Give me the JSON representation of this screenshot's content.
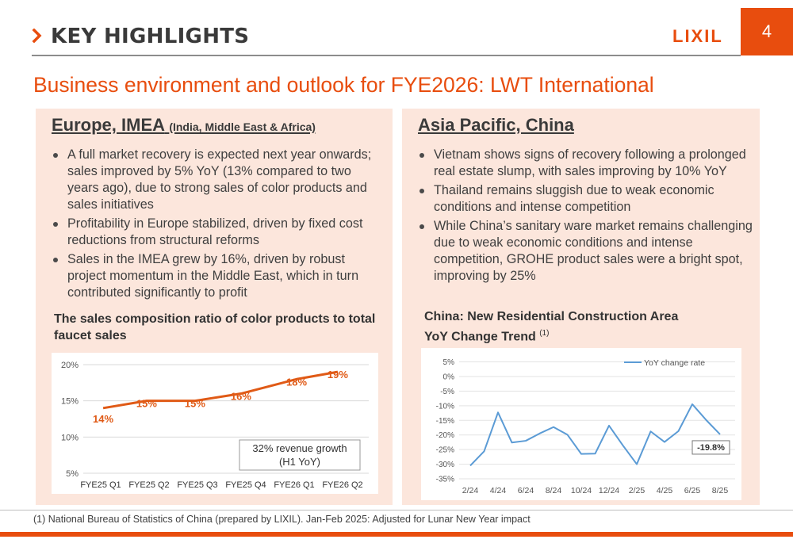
{
  "header": {
    "title": "KEY HIGHLIGHTS",
    "logo": "LIXIL",
    "page_number": "4"
  },
  "subtitle": "Business environment and outlook for FYE2026: LWT International",
  "left_panel": {
    "title": "Europe, IMEA",
    "title_sub": "(India, Middle East & Africa)",
    "bullets": [
      "A full market recovery is expected next year onwards; sales improved by 5% YoY (13% compared to two years ago), due to strong sales of color products and sales initiatives",
      "Profitability in Europe stabilized, driven by fixed cost reductions from structural reforms",
      "Sales in the IMEA grew by 16%, driven by robust project momentum in the Middle East, which in turn contributed significantly to profit"
    ],
    "chart_title": "The sales composition ratio of color products to total faucet sales",
    "annotation_line1": "32% revenue growth",
    "annotation_line2": "(H1 YoY)"
  },
  "right_panel": {
    "title": "Asia Pacific, China",
    "bullets": [
      "Vietnam shows signs of recovery following a prolonged real estate slump, with sales improving by 10% YoY",
      "Thailand remains sluggish due to weak economic conditions and intense competition",
      "While China’s sanitary ware market remains challenging due to weak economic conditions and intense competition, GROHE product sales were a bright spot, improving by 25%"
    ],
    "chart_title_line1": "China: New Residential Construction Area",
    "chart_title_line2": "YoY Change Trend",
    "chart_title_note": "(1)",
    "callout": "-19.8%"
  },
  "footnote": "(1) National Bureau of Statistics of China (prepared by LIXIL). Jan-Feb 2025: Adjusted for Lunar New Year impact",
  "colors": {
    "accent": "#e84d0e",
    "panel_bg": "#fce6dc",
    "line_blue": "#5b9bd5"
  },
  "chart_data": [
    {
      "type": "line",
      "title": "The sales composition ratio of color products to total faucet sales",
      "categories": [
        "FYE25 Q1",
        "FYE25 Q2",
        "FYE25 Q3",
        "FYE25 Q4",
        "FYE26 Q1",
        "FYE26 Q2"
      ],
      "values": [
        14,
        15,
        15,
        16,
        18,
        19
      ],
      "point_x": [
        0.05,
        0.95,
        1.95,
        2.9,
        4.05,
        4.9
      ],
      "data_labels": [
        "14%",
        "15%",
        "15%",
        "16%",
        "18%",
        "19%"
      ],
      "ylim": [
        5,
        20
      ],
      "yticks": [
        5,
        10,
        15,
        20
      ],
      "ytick_labels": [
        "5%",
        "10%",
        "15%",
        "20%"
      ],
      "grid": true,
      "color": "#e05a16"
    },
    {
      "type": "line",
      "title": "China: New Residential Construction Area YoY Change Trend",
      "legend": [
        "YoY change rate"
      ],
      "legend_position": "top-right",
      "x_tick_labels": [
        "2/24",
        "4/24",
        "6/24",
        "8/24",
        "10/24",
        "12/24",
        "2/25",
        "4/25",
        "6/25",
        "8/25"
      ],
      "values": [
        -30.5,
        -25.6,
        -12.3,
        -22.6,
        -22.0,
        -19.5,
        -17.3,
        -19.9,
        -26.5,
        -26.4,
        -16.8,
        -23.6,
        -30.0,
        -18.8,
        -22.4,
        -18.7,
        -9.5,
        -14.9,
        -19.8
      ],
      "ylim": [
        -35,
        5
      ],
      "yticks": [
        5,
        0,
        -5,
        -10,
        -15,
        -20,
        -25,
        -30,
        -35
      ],
      "ytick_labels": [
        "5%",
        "0%",
        "-5%",
        "-10%",
        "-15%",
        "-20%",
        "-25%",
        "-30%",
        "-35%"
      ],
      "callout_value": "-19.8%",
      "grid": true,
      "color": "#5b9bd5"
    }
  ]
}
